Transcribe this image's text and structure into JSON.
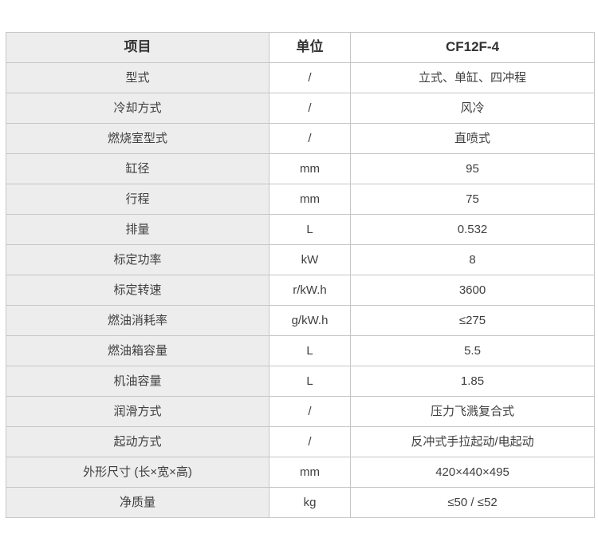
{
  "table": {
    "headers": {
      "item": "项目",
      "unit": "单位",
      "model": "CF12F-4"
    },
    "rows": [
      {
        "item": "型式",
        "unit": "/",
        "value": "立式、单缸、四冲程"
      },
      {
        "item": "冷却方式",
        "unit": "/",
        "value": "风冷"
      },
      {
        "item": "燃烧室型式",
        "unit": "/",
        "value": "直喷式"
      },
      {
        "item": "缸径",
        "unit": "mm",
        "value": "95"
      },
      {
        "item": "行程",
        "unit": "mm",
        "value": "75"
      },
      {
        "item": "排量",
        "unit": "L",
        "value": "0.532"
      },
      {
        "item": "标定功率",
        "unit": "kW",
        "value": "8"
      },
      {
        "item": "标定转速",
        "unit": "r/kW.h",
        "value": "3600"
      },
      {
        "item": "燃油消耗率",
        "unit": "g/kW.h",
        "value": "≤275"
      },
      {
        "item": "燃油箱容量",
        "unit": "L",
        "value": "5.5"
      },
      {
        "item": "机油容量",
        "unit": "L",
        "value": "1.85"
      },
      {
        "item": "润滑方式",
        "unit": "/",
        "value": "压力飞溅复合式"
      },
      {
        "item": "起动方式",
        "unit": "/",
        "value": "反冲式手拉起动/电起动"
      },
      {
        "item": "外形尺寸 (长×宽×高)",
        "unit": "mm",
        "value": "420×440×495"
      },
      {
        "item": "净质量",
        "unit": "kg",
        "value": "≤50 / ≤52"
      }
    ]
  },
  "colors": {
    "item_column_background": "#ededed",
    "border": "#c6c6c6",
    "text": "#3f3f3f",
    "header_text": "#333333",
    "page_background": "#ffffff"
  }
}
